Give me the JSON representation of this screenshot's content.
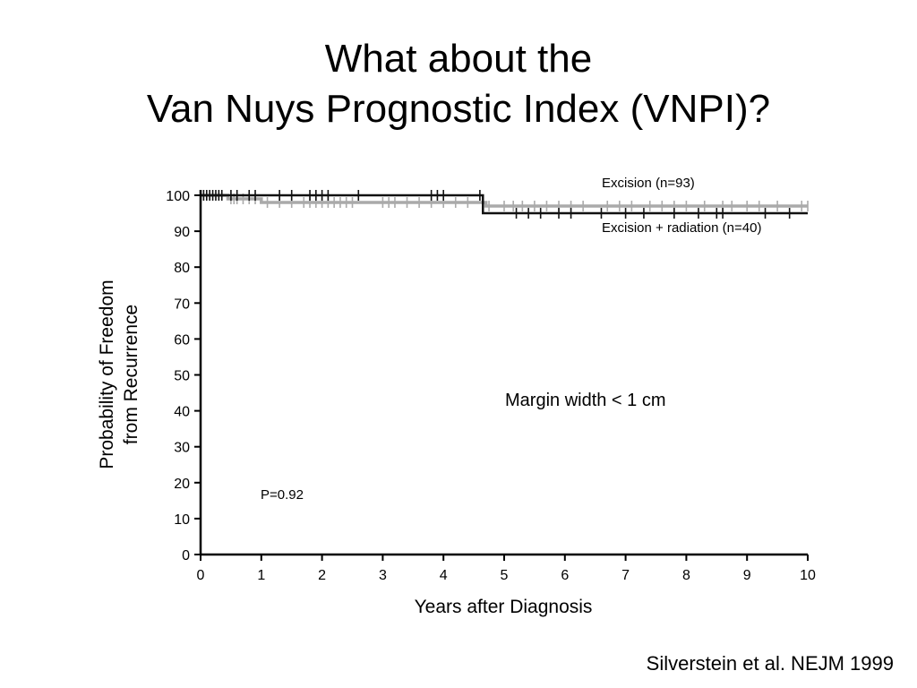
{
  "slide": {
    "title_line1": "What about the",
    "title_line2": "Van Nuys Prognostic Index (VNPI)?",
    "citation": "Silverstein et al. NEJM 1999"
  },
  "chart_data": {
    "type": "line",
    "xlabel": "Years after Diagnosis",
    "ylabel_line1": "Probability of Freedom",
    "ylabel_line2": "from Recurrence",
    "xlim": [
      0,
      10
    ],
    "ylim": [
      0,
      100
    ],
    "xticks": [
      0,
      1,
      2,
      3,
      4,
      5,
      6,
      7,
      8,
      9,
      10
    ],
    "yticks": [
      0,
      10,
      20,
      30,
      40,
      50,
      60,
      70,
      80,
      90,
      100
    ],
    "annotation": "Margin width < 1 cm",
    "pvalue": "P=0.92",
    "series": [
      {
        "name": "Excision (n=93)",
        "color": "#aaaaaa",
        "step_x": [
          0,
          0.45,
          1.0,
          4.7,
          10
        ],
        "step_y": [
          100,
          99,
          98,
          97,
          97
        ],
        "censor_x": [
          0.5,
          0.55,
          0.6,
          0.7,
          0.8,
          0.9,
          1.1,
          1.3,
          1.5,
          1.7,
          1.8,
          1.9,
          2.0,
          2.1,
          2.2,
          2.3,
          2.4,
          2.5,
          3.0,
          3.1,
          3.2,
          3.4,
          3.6,
          3.8,
          4.0,
          4.2,
          4.4,
          4.75,
          5.0,
          5.15,
          5.3,
          5.5,
          5.7,
          5.9,
          6.1,
          6.3,
          6.7,
          6.9,
          7.1,
          7.4,
          7.6,
          7.8,
          8.0,
          8.3,
          8.6,
          8.75,
          9.0,
          9.2,
          9.5,
          9.9,
          10.0
        ]
      },
      {
        "name": "Excision + radiation (n=40)",
        "color": "#111111",
        "step_x": [
          0,
          0.45,
          1.0,
          4.65,
          10
        ],
        "step_y": [
          100,
          100,
          100,
          95,
          95
        ],
        "censor_x": [
          0.05,
          0.1,
          0.15,
          0.2,
          0.25,
          0.3,
          0.35,
          0.5,
          0.6,
          0.8,
          0.9,
          1.3,
          1.5,
          1.8,
          1.9,
          2.0,
          2.1,
          2.6,
          3.8,
          3.9,
          4.0,
          4.6,
          5.2,
          5.4,
          5.6,
          5.9,
          6.1,
          6.6,
          7.0,
          7.3,
          7.8,
          8.2,
          8.5,
          8.6,
          9.3,
          9.7
        ]
      }
    ]
  }
}
